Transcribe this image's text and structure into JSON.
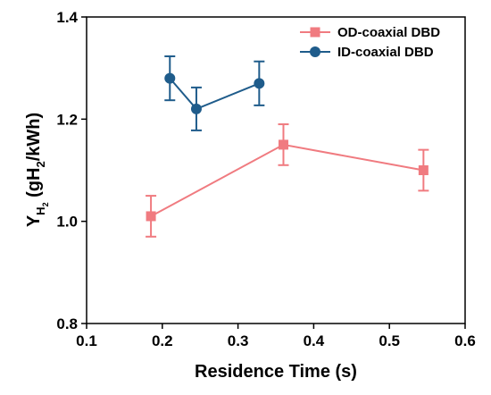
{
  "chart_data": {
    "type": "line",
    "xlabel": "Residence Time (s)",
    "ylabel": {
      "main": "Y",
      "sub": "H",
      "subsub": "2",
      "rest_open": " (gH",
      "rest_sub": "2",
      "rest_close": "/kWh)"
    },
    "xlim": [
      0.1,
      0.6
    ],
    "ylim": [
      0.8,
      1.4
    ],
    "xticks": [
      "0.1",
      "0.2",
      "0.3",
      "0.4",
      "0.5",
      "0.6"
    ],
    "yticks": [
      "0.8",
      "1.0",
      "1.2",
      "1.4"
    ],
    "grid": false,
    "legend_position": "top-right",
    "series": [
      {
        "name": "OD-coaxial DBD",
        "marker": "square",
        "color": "#f07b80",
        "x": [
          0.185,
          0.36,
          0.545
        ],
        "y": [
          1.01,
          1.15,
          1.1
        ],
        "err": [
          0.04,
          0.04,
          0.04
        ]
      },
      {
        "name": "ID-coaxial DBD",
        "marker": "circle",
        "color": "#1f5c8b",
        "x": [
          0.21,
          0.245,
          0.328
        ],
        "y": [
          1.28,
          1.22,
          1.27
        ],
        "err": [
          0.043,
          0.042,
          0.043
        ]
      }
    ]
  }
}
